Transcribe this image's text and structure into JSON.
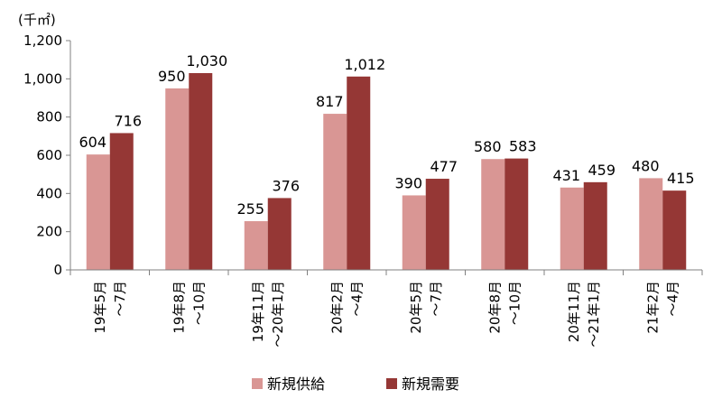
{
  "chart_data": {
    "type": "bar",
    "unit_label": "(千㎡)",
    "categories": [
      [
        "19年5月",
        "～7月"
      ],
      [
        "19年8月",
        "～10月"
      ],
      [
        "19年11月",
        "～20年1月"
      ],
      [
        "20年2月",
        "～4月"
      ],
      [
        "20年5月",
        "～7月"
      ],
      [
        "20年8月",
        "～10月"
      ],
      [
        "20年11月",
        "～21年1月"
      ],
      [
        "21年2月",
        "～4月"
      ]
    ],
    "series": [
      {
        "name": "新規供給",
        "color": "#d99694",
        "values": [
          604,
          950,
          255,
          817,
          390,
          580,
          431,
          480
        ],
        "labels": [
          "604",
          "950",
          "255",
          "817",
          "390",
          "580",
          "431",
          "480"
        ]
      },
      {
        "name": "新規需要",
        "color": "#953735",
        "values": [
          716,
          1030,
          376,
          1012,
          477,
          583,
          459,
          415
        ],
        "labels": [
          "716",
          "1,030",
          "376",
          "1,012",
          "477",
          "583",
          "459",
          "415"
        ]
      }
    ],
    "ylim": [
      0,
      1200
    ],
    "yticks": [
      0,
      200,
      400,
      600,
      800,
      1000,
      1200
    ],
    "ytick_labels": [
      "0",
      "200",
      "400",
      "600",
      "800",
      "1,000",
      "1,200"
    ],
    "grid": false,
    "legend_position": "bottom"
  }
}
